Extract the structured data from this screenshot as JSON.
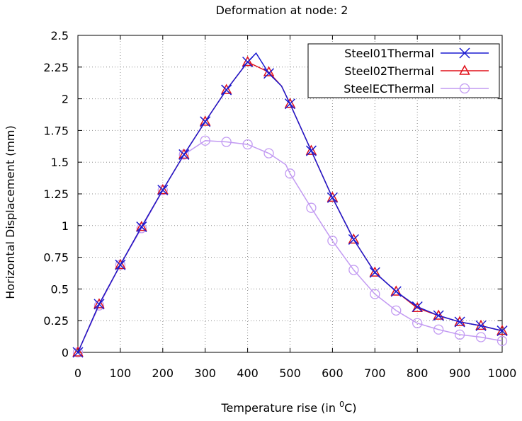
{
  "chart_data": {
    "type": "line",
    "title": "Deformation at node: 2",
    "xlabel": "Temperature rise (in",
    "xlabel_super": "0",
    "xlabel_unit": "C)",
    "ylabel": "Horizontal Displacement (mm)",
    "xlim": [
      0,
      1000
    ],
    "ylim": [
      0,
      2.5
    ],
    "x_ticks": [
      0,
      100,
      200,
      300,
      400,
      500,
      600,
      700,
      800,
      900,
      1000
    ],
    "y_ticks": [
      {
        "v": 0,
        "label": "0"
      },
      {
        "v": 0.25,
        "label": "0.25"
      },
      {
        "v": 0.5,
        "label": "0.5"
      },
      {
        "v": 0.75,
        "label": "0.75"
      },
      {
        "v": 1,
        "label": "1"
      },
      {
        "v": 1.25,
        "label": "1.25"
      },
      {
        "v": 1.5,
        "label": "1.5"
      },
      {
        "v": 1.75,
        "label": "1.75"
      },
      {
        "v": 2,
        "label": "2"
      },
      {
        "v": 2.25,
        "label": "2.25"
      },
      {
        "v": 2.5,
        "label": "2.5"
      }
    ],
    "grid": true,
    "legend_position": "top-right",
    "series": [
      {
        "name": "Steel01Thermal",
        "color": "#1a1ad0",
        "marker": "x",
        "x": [
          0,
          50,
          100,
          150,
          200,
          250,
          300,
          350,
          400,
          420,
          450,
          480,
          500,
          550,
          600,
          650,
          700,
          750,
          800,
          850,
          900,
          950,
          1000
        ],
        "y": [
          0.0,
          0.38,
          0.69,
          0.99,
          1.28,
          1.56,
          1.82,
          2.07,
          2.29,
          2.36,
          2.2,
          2.1,
          1.96,
          1.59,
          1.22,
          0.89,
          0.63,
          0.48,
          0.36,
          0.29,
          0.24,
          0.21,
          0.17
        ],
        "marker_x": [
          0,
          50,
          100,
          150,
          200,
          250,
          300,
          350,
          400,
          450,
          500,
          550,
          600,
          650,
          700,
          750,
          800,
          850,
          900,
          950,
          1000
        ]
      },
      {
        "name": "Steel02Thermal",
        "color": "#e0101a",
        "marker": "triangle",
        "x": [
          0,
          50,
          100,
          150,
          200,
          250,
          300,
          350,
          400,
          450,
          480,
          500,
          550,
          600,
          650,
          700,
          750,
          800,
          850,
          900,
          950,
          1000
        ],
        "y": [
          0.0,
          0.38,
          0.69,
          0.99,
          1.28,
          1.56,
          1.82,
          2.07,
          2.29,
          2.21,
          2.1,
          1.96,
          1.59,
          1.22,
          0.89,
          0.63,
          0.48,
          0.35,
          0.29,
          0.24,
          0.21,
          0.17
        ],
        "marker_x": [
          0,
          50,
          100,
          150,
          200,
          250,
          300,
          350,
          400,
          450,
          500,
          550,
          600,
          650,
          700,
          750,
          800,
          850,
          900,
          950,
          1000
        ]
      },
      {
        "name": "SteelECThermal",
        "color": "#c29af2",
        "marker": "circle",
        "x": [
          0,
          50,
          100,
          150,
          200,
          250,
          300,
          350,
          400,
          450,
          490,
          500,
          550,
          600,
          650,
          700,
          750,
          800,
          850,
          900,
          950,
          1000
        ],
        "y": [
          0.0,
          0.37,
          0.69,
          0.98,
          1.28,
          1.56,
          1.67,
          1.66,
          1.64,
          1.57,
          1.48,
          1.41,
          1.14,
          0.88,
          0.65,
          0.46,
          0.33,
          0.23,
          0.18,
          0.14,
          0.12,
          0.09
        ],
        "marker_x": [
          0,
          50,
          100,
          150,
          200,
          250,
          300,
          350,
          400,
          450,
          500,
          550,
          600,
          650,
          700,
          750,
          800,
          850,
          900,
          950,
          1000
        ]
      }
    ]
  }
}
